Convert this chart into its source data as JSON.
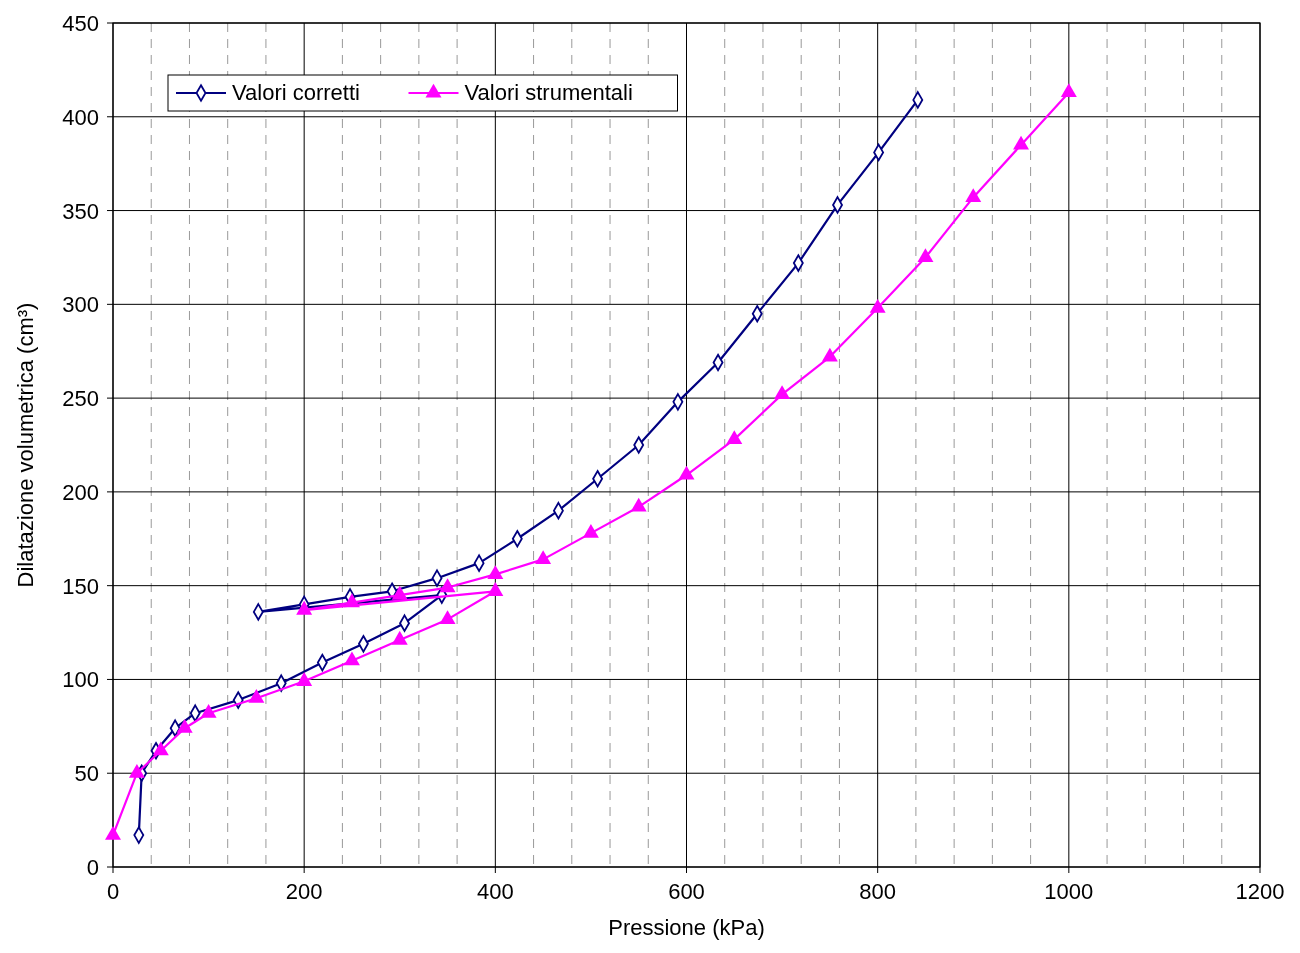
{
  "chart_data": {
    "type": "line",
    "xlabel": "Pressione (kPa)",
    "ylabel": "Dilatazione volumetrica (cm³)",
    "xlim": [
      0,
      1200
    ],
    "ylim": [
      0,
      450
    ],
    "xticks": [
      0,
      {
        "value": 40,
        "label": null
      },
      {
        "value": 80,
        "label": null
      },
      {
        "value": 120,
        "label": null
      },
      {
        "value": 160,
        "label": null
      },
      200,
      {
        "value": 240,
        "label": null
      },
      {
        "value": 280,
        "label": null
      },
      {
        "value": 320,
        "label": null
      },
      {
        "value": 360,
        "label": null
      },
      400,
      {
        "value": 440,
        "label": null
      },
      {
        "value": 480,
        "label": null
      },
      {
        "value": 520,
        "label": null
      },
      {
        "value": 560,
        "label": null
      },
      600,
      {
        "value": 640,
        "label": null
      },
      {
        "value": 680,
        "label": null
      },
      {
        "value": 720,
        "label": null
      },
      {
        "value": 760,
        "label": null
      },
      800,
      {
        "value": 840,
        "label": null
      },
      {
        "value": 880,
        "label": null
      },
      {
        "value": 920,
        "label": null
      },
      {
        "value": 960,
        "label": null
      },
      1000,
      {
        "value": 1040,
        "label": null
      },
      {
        "value": 1080,
        "label": null
      },
      {
        "value": 1120,
        "label": null
      },
      {
        "value": 1160,
        "label": null
      },
      1200
    ],
    "yticks": [
      0,
      50,
      100,
      150,
      200,
      250,
      300,
      350,
      400,
      450
    ],
    "grid": true,
    "legend": "top left",
    "line_style": "solid",
    "series": [
      {
        "name": "Valori corretti",
        "color": "#000080",
        "marker": "diamond",
        "x": [
          27,
          30,
          45,
          65,
          86,
          131,
          176,
          219,
          262,
          305,
          344,
          152,
          200,
          248,
          292,
          339,
          383,
          423,
          466,
          507,
          550,
          591,
          633,
          674,
          717,
          758,
          801,
          842
        ],
        "values": [
          17,
          50,
          62,
          74,
          82,
          89,
          98,
          109,
          119,
          130,
          145,
          136,
          140,
          144,
          147,
          154,
          162,
          175,
          190,
          207,
          225,
          248,
          269,
          295,
          322,
          353,
          381,
          409
        ]
      },
      {
        "name": "Valori strumentali",
        "color": "#ff00ff",
        "marker": "triangle",
        "x": [
          0,
          25,
          50,
          75,
          100,
          150,
          200,
          250,
          300,
          350,
          400,
          200,
          250,
          300,
          350,
          400,
          450,
          500,
          550,
          600,
          650,
          700,
          750,
          800,
          850,
          900,
          950,
          1000
        ],
        "values": [
          17,
          50,
          62,
          74,
          82,
          90,
          99,
          110,
          121,
          132,
          147,
          137,
          141,
          145,
          149,
          156,
          164,
          178,
          192,
          209,
          228,
          252,
          272,
          298,
          325,
          357,
          385,
          413
        ]
      }
    ]
  }
}
